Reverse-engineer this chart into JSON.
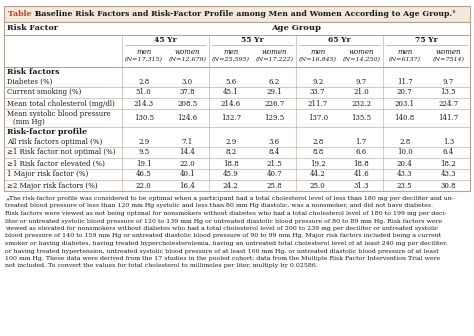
{
  "title_label": "Table 1.",
  "title_text": " Baseline Risk Factors and Risk-Factor Profile among Men and Women According to Age Group.",
  "title_asterisk": "°",
  "header_bg": "#f2e8dc",
  "table_bg": "#ffffff",
  "border_color": "#b8a090",
  "title_label_color": "#c04020",
  "text_color": "#1a1a1a",
  "age_groups": [
    "45 Yr",
    "55 Yr",
    "65 Yr",
    "75 Yr"
  ],
  "ns": [
    [
      "(N=17,315)",
      "(N=12,679)"
    ],
    [
      "(N=25,595)",
      "(N=17,222)"
    ],
    [
      "(N=16,845)",
      "(N=14,250)"
    ],
    [
      "(N=6137)",
      "(N=7514)"
    ]
  ],
  "section1_label": "Risk factors",
  "section2_label": "Risk-factor profile",
  "row_labels1": [
    "Diabetes (%)",
    "Current smoking (%)",
    "Mean total cholesterol (mg/dl)",
    "Mean systolic blood pressure\n(mm Hg)"
  ],
  "row_labels2": [
    "All risk factors optimal (%)",
    "≥1 Risk factor not optimal (%)",
    "≥1 Risk factor elevated (%)",
    "1 Major risk factor (%)",
    "≥2 Major risk factors (%)"
  ],
  "data1": [
    [
      "2.8",
      "3.0",
      "5.6",
      "6.2",
      "9.2",
      "9.7",
      "11.7",
      "9.7"
    ],
    [
      "51.0",
      "37.8",
      "45.1",
      "29.1",
      "33.7",
      "21.0",
      "20.7",
      "13.5"
    ],
    [
      "214.3",
      "208.5",
      "214.6",
      "226.7",
      "211.7",
      "232.2",
      "203.1",
      "224.7"
    ],
    [
      "130.5",
      "124.6",
      "132.7",
      "129.5",
      "137.0",
      "135.5",
      "140.8",
      "141.7"
    ]
  ],
  "data2": [
    [
      "2.9",
      "7.1",
      "2.9",
      "3.6",
      "2.8",
      "1.7",
      "2.8",
      "1.3"
    ],
    [
      "9.5",
      "14.4",
      "8.2",
      "8.4",
      "8.8",
      "6.6",
      "10.0",
      "6.4"
    ],
    [
      "19.1",
      "22.0",
      "18.8",
      "21.5",
      "19.2",
      "18.8",
      "20.4",
      "18.2"
    ],
    [
      "46.5",
      "40.1",
      "45.9",
      "40.7",
      "44.2",
      "41.6",
      "43.3",
      "43.3"
    ],
    [
      "22.0",
      "16.4",
      "24.2",
      "25.8",
      "25.0",
      "31.3",
      "23.5",
      "30.8"
    ]
  ],
  "footnote_lines": [
    "* The risk-factor profile was considered to be optimal when a participant had a total cholesterol level of less than 180 mg per deciliter and un-",
    "treated blood pressure of less than 120 mm Hg systolic and less than 80 mm Hg diastolic, was a nonsmoker, and did not have diabetes.",
    "Risk factors were viewed as not being optimal for nonsmokers without diabetes who had a total cholesterol level of 180 to 199 mg per deci-",
    "liter or untreated systolic blood pressure of 120 to 139 mm Hg or untreated diastolic blood pressure of 80 to 89 mm Hg. Risk factors were",
    "viewed as elevated for nonsmokers without diabetes who had a total cholesterol level of 200 to 239 mg per deciliter or untreated systolic",
    "blood pressure of 140 to 159 mm Hg or untreated diastolic blood pressure of 90 to 99 mm Hg. Major risk factors included being a current",
    "smoker or having diabetes, having treated hypercholesterolemia, having an untreated total cholesterol level of at least 240 mg per deciliter,",
    "or having treated hypertension, untreated systolic blood pressure of at least 160 mm Hg, or untreated diastolic blood pressure of at least",
    "100 mm Hg. These data were derived from the 17 studies in the pooled cohort; data from the Multiple Risk Factor Intervention Trial were",
    "not included. To convert the values for total cholesterol to millimoles per liter, multiply by 0.02586."
  ]
}
